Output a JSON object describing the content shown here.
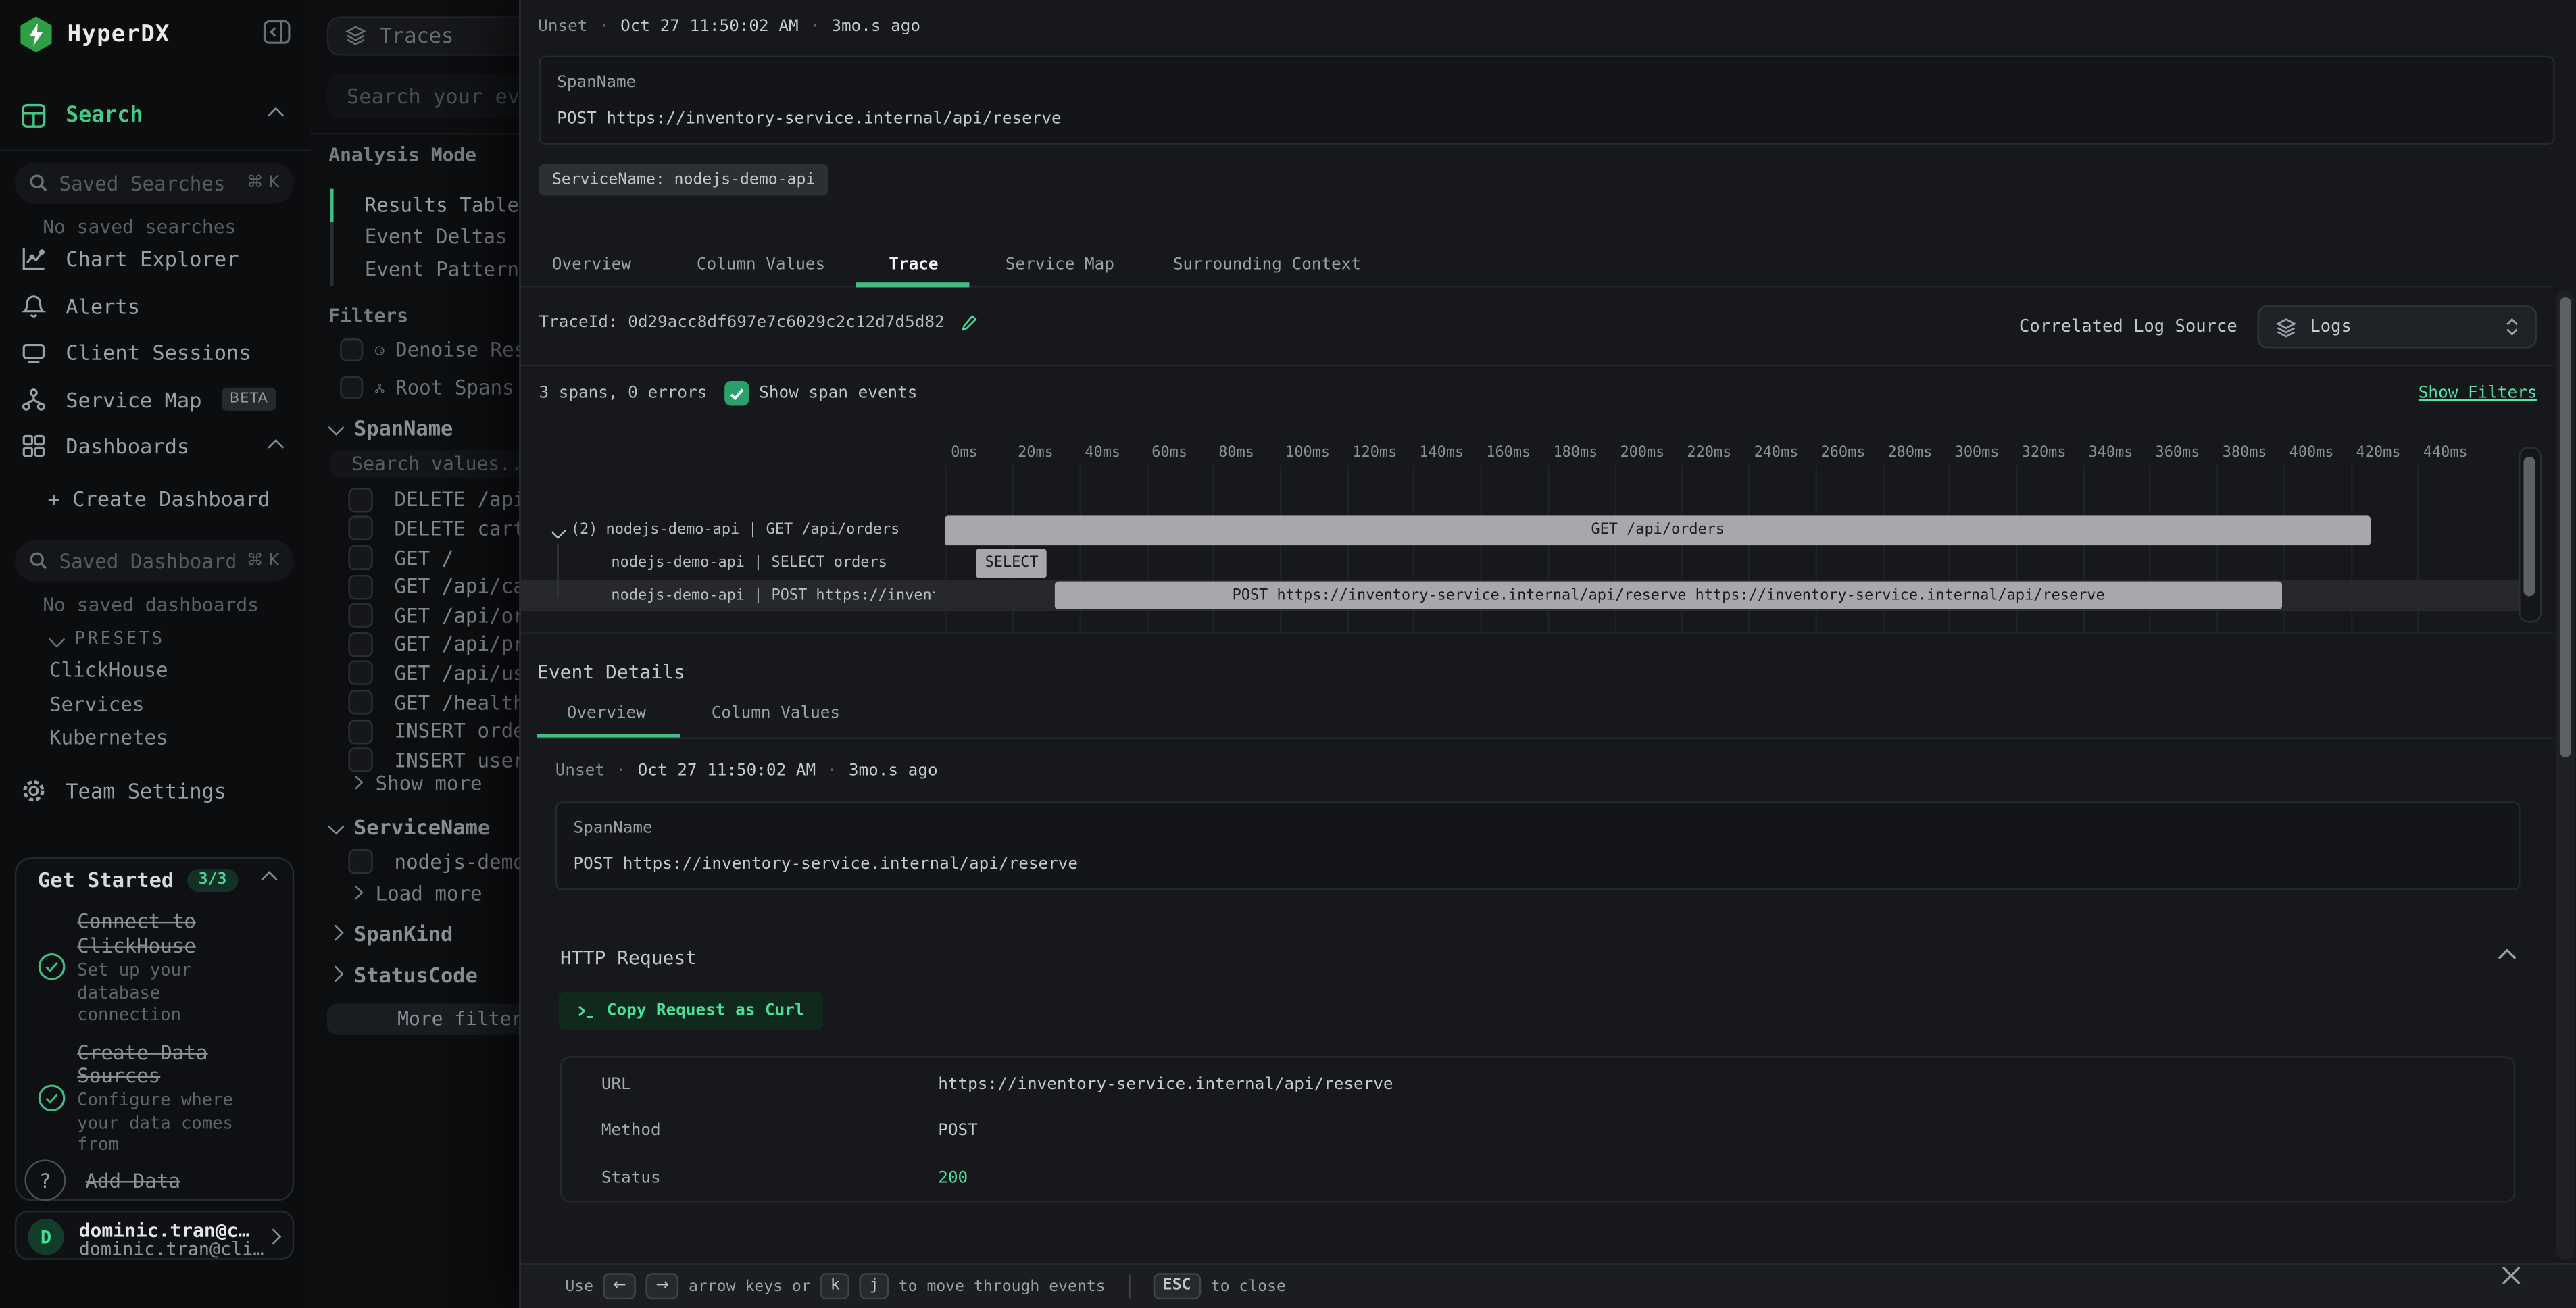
{
  "app": {
    "name": "HyperDX"
  },
  "sidebar": {
    "search_item": "Search",
    "saved_searches": {
      "placeholder": "Saved Searches",
      "shortcut": "⌘ K",
      "empty": "No saved searches"
    },
    "nav": [
      {
        "label": "Chart Explorer"
      },
      {
        "label": "Alerts"
      },
      {
        "label": "Client Sessions"
      },
      {
        "label": "Service Map",
        "badge": "BETA"
      },
      {
        "label": "Dashboards"
      }
    ],
    "create_dashboard": "+ Create Dashboard",
    "saved_dashboards": {
      "placeholder": "Saved Dashboards",
      "shortcut": "⌘ K",
      "empty": "No saved dashboards"
    },
    "presets": {
      "label": "PRESETS",
      "items": [
        "ClickHouse",
        "Services",
        "Kubernetes"
      ]
    },
    "team_settings": "Team Settings",
    "get_started": {
      "title": "Get Started",
      "badge": "3/3",
      "items": [
        {
          "title1": "Connect to",
          "title2": "ClickHouse",
          "desc1": "Set up your",
          "desc2": "database",
          "desc3": "connection"
        },
        {
          "title1": "Create Data",
          "title2": "Sources",
          "desc1": "Configure where",
          "desc2": "your data comes",
          "desc3": "from"
        },
        {
          "title1": "Add Data"
        }
      ]
    },
    "user": {
      "initial": "D",
      "name": "dominic.tran@c…",
      "email": "dominic.tran@cli…"
    }
  },
  "panel": {
    "source": "Traces",
    "search_placeholder": "Search your events...",
    "analysis_mode": {
      "label": "Analysis Mode",
      "options": [
        "Results Table",
        "Event Deltas",
        "Event Patterns"
      ],
      "active": "Results Table"
    },
    "filters_label": "Filters",
    "toggles": [
      {
        "label": "Denoise Results"
      },
      {
        "label": "Root Spans Only"
      }
    ],
    "span_name": {
      "label": "SpanName",
      "search_placeholder": "Search values...",
      "values": [
        "DELETE /api/cart",
        "DELETE cart",
        "GET /",
        "GET /api/cart",
        "GET /api/orders",
        "GET /api/products",
        "GET /api/users",
        "GET /health",
        "INSERT orders",
        "INSERT users"
      ],
      "more": "Show more"
    },
    "service_name": {
      "label": "ServiceName",
      "values": [
        "nodejs-demo-api"
      ],
      "more": "Load more"
    },
    "span_kind": {
      "label": "SpanKind"
    },
    "status_code": {
      "label": "StatusCode"
    },
    "more_filters": "More filters"
  },
  "modal": {
    "meta": {
      "status": "Unset",
      "dot": "·",
      "timestamp": "Oct 27 11:50:02 AM",
      "relative": "3mo.s ago"
    },
    "span": {
      "field": "SpanName",
      "value": "POST https://inventory-service.internal/api/reserve"
    },
    "tag": "ServiceName: nodejs-demo-api",
    "tabs": [
      "Overview",
      "Column Values",
      "Trace",
      "Service Map",
      "Surrounding Context"
    ],
    "active_tab": "Trace",
    "trace": {
      "trace_id_label": "TraceId:",
      "trace_id": "0d29acc8df697e7c6029c2c12d7d5d82",
      "correlated_label": "Correlated Log Source",
      "log_source": "Logs",
      "spans_summary": "3 spans, 0 errors",
      "show_span_events": "Show span events",
      "show_filters": "Show Filters",
      "timeline": {
        "ticks": [
          "0ms",
          "20ms",
          "40ms",
          "60ms",
          "80ms",
          "100ms",
          "120ms",
          "140ms",
          "160ms",
          "180ms",
          "200ms",
          "220ms",
          "240ms",
          "260ms",
          "280ms",
          "300ms",
          "320ms",
          "340ms",
          "360ms",
          "380ms",
          "400ms",
          "420ms",
          "440ms"
        ],
        "rows": [
          {
            "indent": 0,
            "expander": true,
            "count": "(2)",
            "label": "nodejs-demo-api | GET /api/orders",
            "bar_label": "GET /api/orders",
            "start_ms": 0,
            "duration_ms": 426,
            "selected": false
          },
          {
            "indent": 1,
            "expander": false,
            "count": "",
            "label": "nodejs-demo-api | SELECT orders",
            "bar_label": "SELECT",
            "start_ms": 9.4,
            "duration_ms": 21,
            "selected": false
          },
          {
            "indent": 1,
            "expander": false,
            "count": "",
            "label": "nodejs-demo-api | POST https://inventory-service.internal/api/reserve",
            "bar_label": "POST https://inventory-service.internal/api/reserve https://inventory-service.internal/api/reserve",
            "start_ms": 32.7,
            "duration_ms": 367,
            "selected": true
          }
        ]
      }
    },
    "event_details": {
      "title": "Event Details",
      "tabs": [
        "Overview",
        "Column Values"
      ],
      "active_tab": "Overview",
      "meta": {
        "status": "Unset",
        "dot": "·",
        "timestamp": "Oct 27 11:50:02 AM",
        "relative": "3mo.s ago"
      },
      "span": {
        "field": "SpanName",
        "value": "POST https://inventory-service.internal/api/reserve"
      }
    },
    "http_request": {
      "title": "HTTP Request",
      "copy_button": "Copy Request as Curl",
      "rows": [
        {
          "label": "URL",
          "value": "https://inventory-service.internal/api/reserve",
          "green": false
        },
        {
          "label": "Method",
          "value": "POST",
          "green": false
        },
        {
          "label": "Status",
          "value": "200",
          "green": true
        }
      ]
    },
    "footer": {
      "use": "Use",
      "arrow_keys": [
        "←",
        "→"
      ],
      "or_text": "arrow keys or",
      "nav_keys": [
        "k",
        "j"
      ],
      "move_text": "to move through events",
      "esc": "ESC",
      "close_text": "to close"
    }
  },
  "colors": {
    "accent": "#3fbe83",
    "bright_green": "#52e3a8",
    "bar_gray": "#a6a8ac",
    "status_ok": "#46e29b",
    "logo_green": "#2f9e44"
  }
}
